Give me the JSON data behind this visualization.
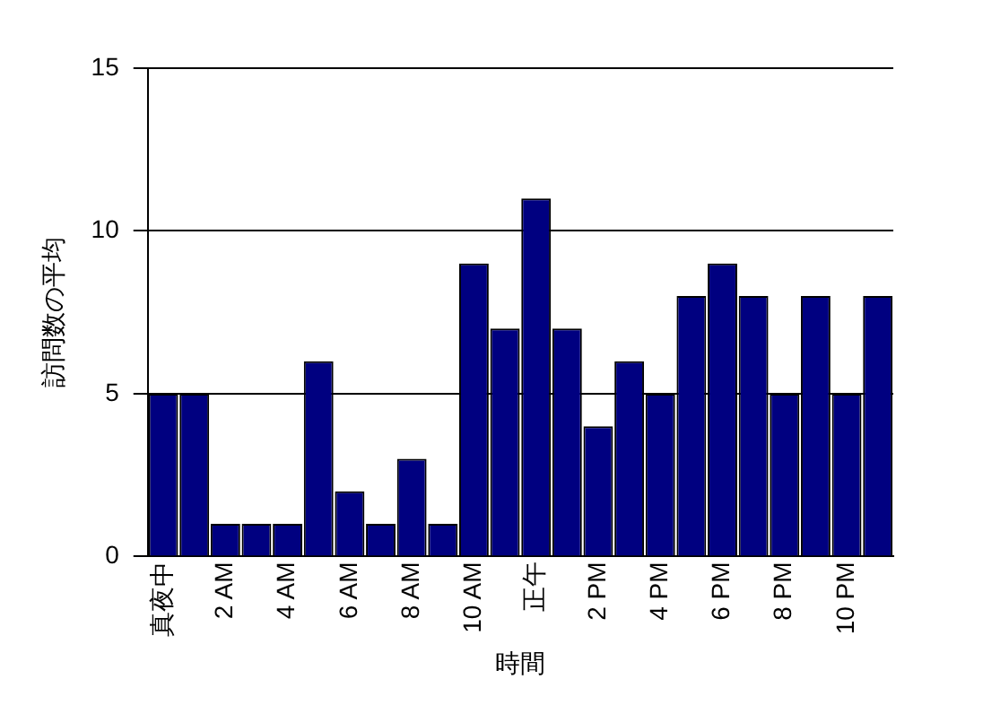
{
  "chart_data": {
    "type": "bar",
    "xlabel": "時間",
    "ylabel": "訪問数の平均",
    "categories": [
      "真夜中",
      null,
      "2 AM",
      null,
      "4 AM",
      null,
      "6 AM",
      null,
      "8 AM",
      null,
      "10 AM",
      null,
      "正午",
      null,
      "2 PM",
      null,
      "4 PM",
      null,
      "6 PM",
      null,
      "8 PM",
      null,
      "10 PM",
      null
    ],
    "values": [
      5,
      5,
      1,
      1,
      1,
      6,
      2,
      1,
      3,
      1,
      9,
      7,
      11,
      7,
      4,
      6,
      5,
      8,
      9,
      8,
      5,
      8,
      5,
      8
    ],
    "color": "#000080",
    "ylim": [
      0,
      15
    ],
    "yticks": [
      0,
      5,
      10,
      15
    ],
    "grid": "y",
    "legend": false
  }
}
